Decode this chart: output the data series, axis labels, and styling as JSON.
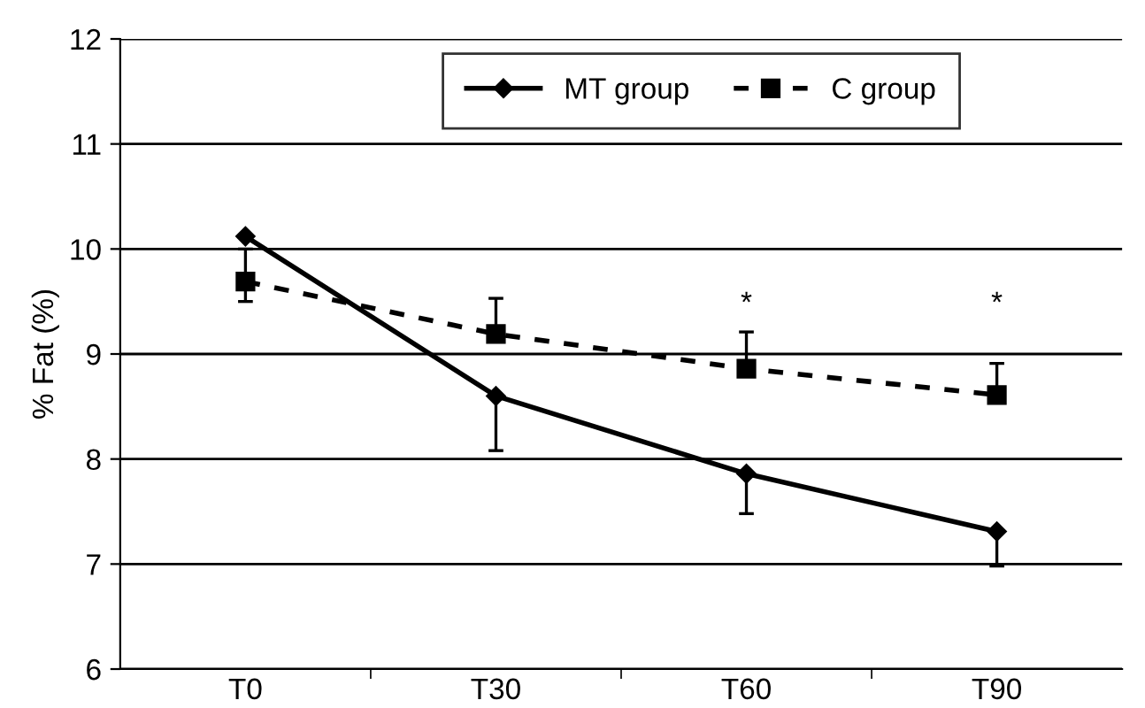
{
  "chart_data": {
    "type": "line",
    "ylabel": "% Fat (%)",
    "categories": [
      "T0",
      "T30",
      "T60",
      "T90"
    ],
    "series": [
      {
        "name": "MT group",
        "color": "#000000",
        "values": [
          10.12,
          8.6,
          7.86,
          7.31
        ],
        "errors": [
          null,
          [
            8.08,
            8.6
          ],
          [
            7.48,
            7.86
          ],
          [
            6.98,
            7.31
          ]
        ],
        "marker": "diamond",
        "line_style": "solid"
      },
      {
        "name": "C group",
        "color": "#000000",
        "values": [
          9.69,
          9.19,
          8.86,
          8.61
        ],
        "errors": [
          [
            9.5,
            10.0
          ],
          [
            9.19,
            9.53
          ],
          [
            8.86,
            9.21
          ],
          [
            8.61,
            8.91
          ]
        ],
        "marker": "square",
        "line_style": "dashed"
      }
    ],
    "ylim": [
      6,
      12
    ],
    "yticks": [
      6,
      7,
      8,
      9,
      10,
      11,
      12
    ],
    "grid": "y",
    "legend": "top",
    "annotations": [
      "*",
      "*"
    ]
  }
}
